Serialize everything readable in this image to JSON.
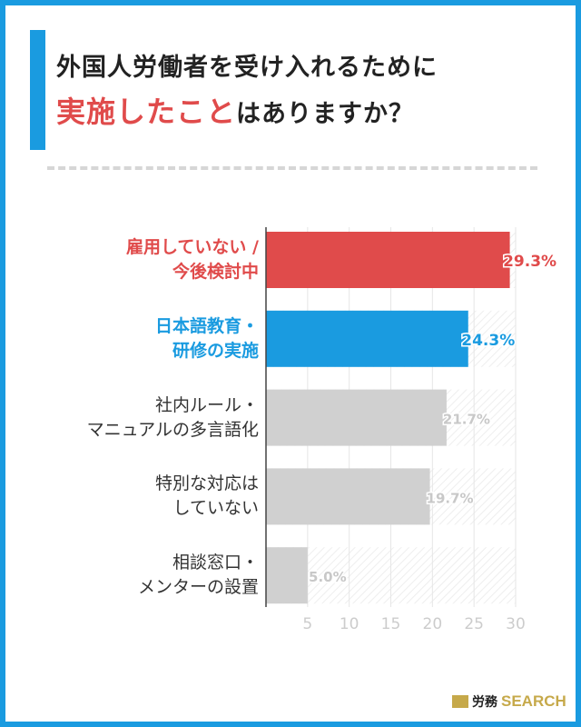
{
  "title": {
    "line1": "外国人労働者を受け入れるために",
    "line2_highlight": "実施したこと",
    "line2_rest": "はありますか？"
  },
  "chart_data": {
    "type": "bar",
    "orientation": "horizontal",
    "categories": [
      [
        "雇用していない /",
        "今後検討中"
      ],
      [
        "日本語教育・",
        "研修の実施"
      ],
      [
        "社内ルール・",
        "マニュアルの多言語化"
      ],
      [
        "特別な対応は",
        "していない"
      ],
      [
        "相談窓口・",
        "メンターの設置"
      ]
    ],
    "values": [
      29.3,
      24.3,
      21.7,
      19.7,
      5.0
    ],
    "data_labels": [
      "29.3%",
      "24.3%",
      "21.7%",
      "19.7%",
      "5.0%"
    ],
    "colors": [
      "#e04b4b",
      "#1a9be0",
      "#d0d0d0",
      "#d0d0d0",
      "#d0d0d0"
    ],
    "label_colors": [
      "#e04b4b",
      "#1a9be0",
      "#333333",
      "#333333",
      "#333333"
    ],
    "xlim": [
      0,
      30
    ],
    "xticks": [
      5,
      10,
      15,
      20,
      25,
      30
    ],
    "grid": true
  },
  "logo": {
    "jp": "労務",
    "en": "SEARCH"
  }
}
